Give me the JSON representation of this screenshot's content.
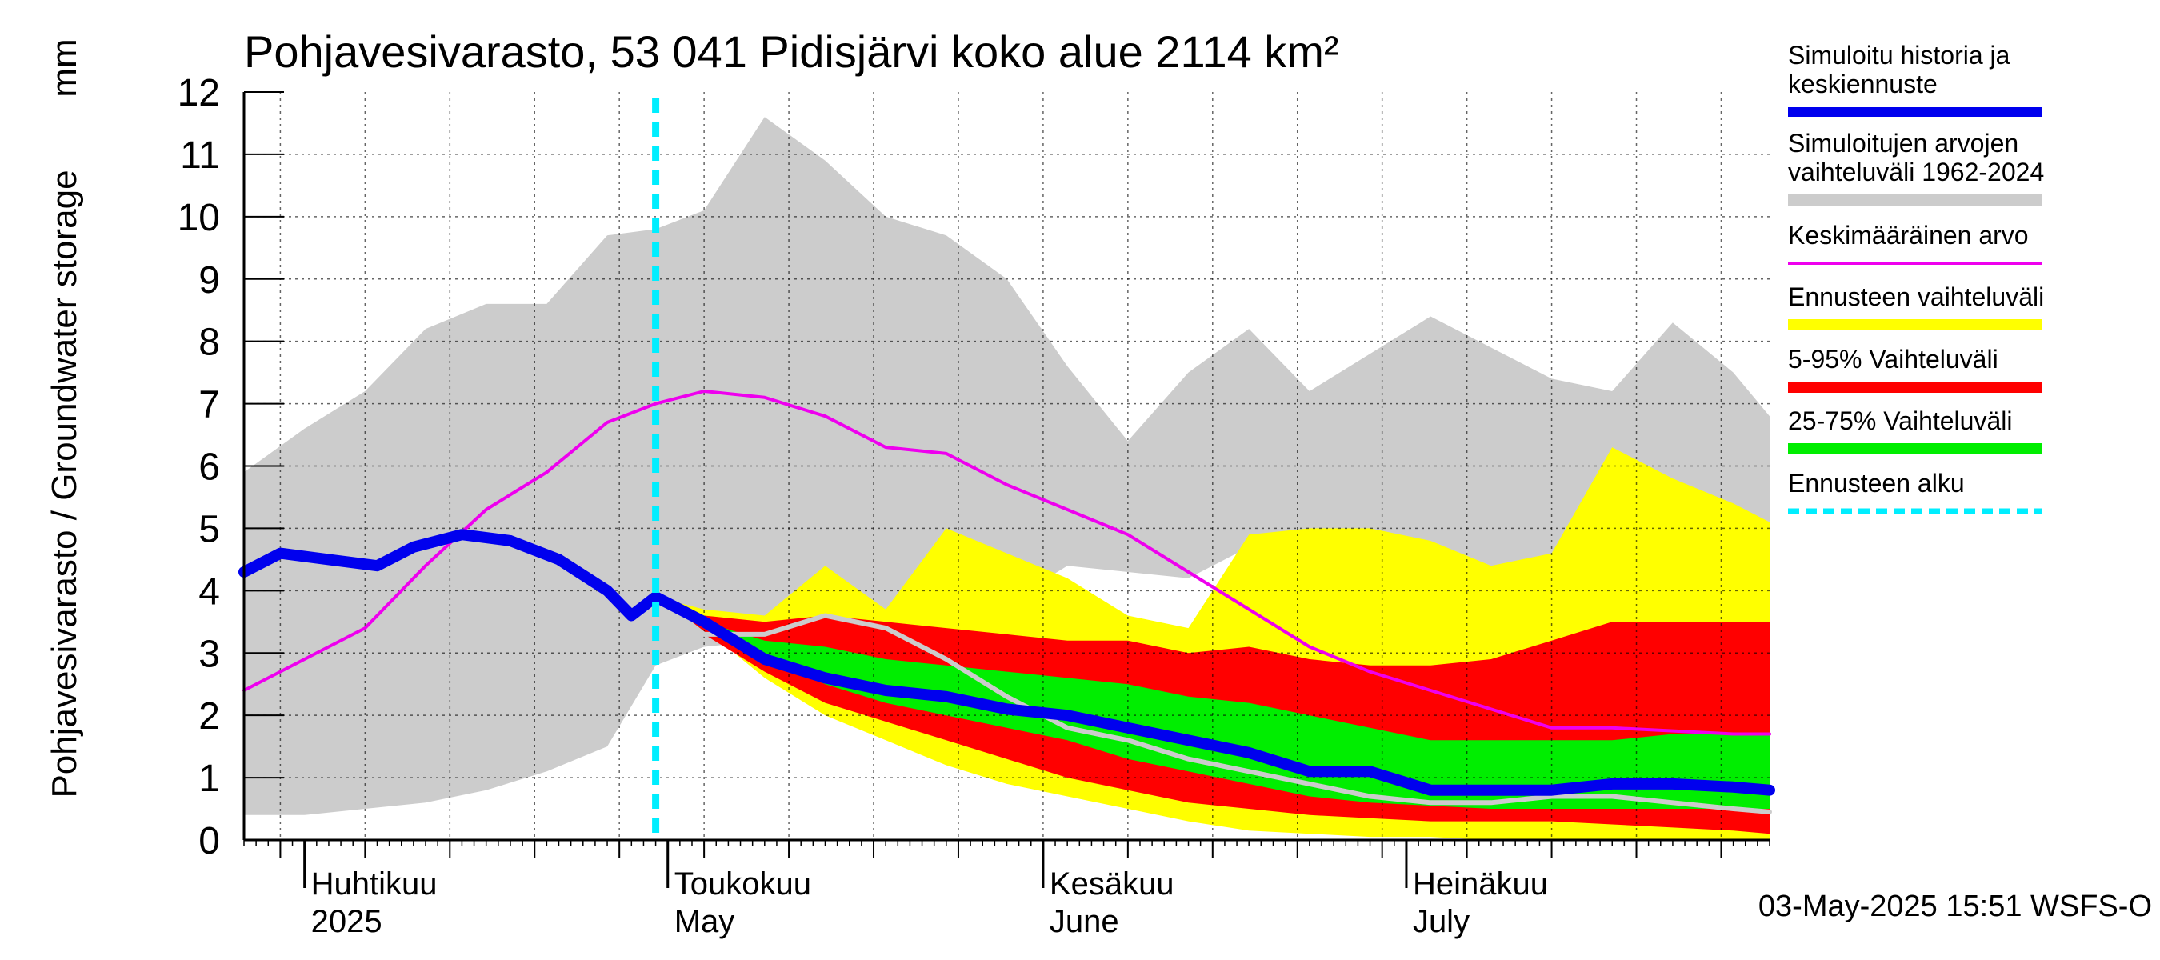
{
  "chart_data": {
    "type": "area",
    "title": "Pohjavesivarasto, 53 041 Pidisjärvi koko alue 2114 km²",
    "ylabel": "Pohjavesivarasto / Groundwater storage",
    "yunit": "mm",
    "ylim": [
      0,
      12
    ],
    "yticks": [
      0,
      1,
      2,
      3,
      4,
      5,
      6,
      7,
      8,
      9,
      10,
      11,
      12
    ],
    "xlim": [
      "2025-03-27",
      "2025-07-31"
    ],
    "x_month_labels": [
      {
        "date": "2025-04-01",
        "fi": "Huhtikuu",
        "en": "2025"
      },
      {
        "date": "2025-05-01",
        "fi": "Toukokuu",
        "en": "May"
      },
      {
        "date": "2025-06-01",
        "fi": "Kesäkuu",
        "en": "June"
      },
      {
        "date": "2025-07-01",
        "fi": "Heinäkuu",
        "en": "July"
      }
    ],
    "forecast_start": "2025-04-30",
    "footer": "03-May-2025 15:51 WSFS-O",
    "legend": [
      {
        "label": "Simuloitu historia ja keskiennuste",
        "color": "#0000ee",
        "style": "thick"
      },
      {
        "label": "Simuloitujen arvojen vaihteluväli 1962-2024",
        "color": "#cccccc",
        "style": "band"
      },
      {
        "label": "Keskimääräinen arvo",
        "color": "#ee00ee",
        "style": "line"
      },
      {
        "label": "Ennusteen vaihteluväli",
        "color": "#ffff00",
        "style": "band"
      },
      {
        "label": "5-95% Vaihteluväli",
        "color": "#ff0000",
        "style": "band"
      },
      {
        "label": "25-75% Vaihteluväli",
        "color": "#00ee00",
        "style": "band"
      },
      {
        "label": "Ennusteen alku",
        "color": "#00eeff",
        "style": "dashed"
      }
    ],
    "legend_placement": "right",
    "grid": true,
    "series": [
      {
        "name": "Simuloitujen arvojen vaihteluväli 1962-2024",
        "kind": "band",
        "color": "#cccccc",
        "x": [
          "2025-03-27",
          "2025-04-01",
          "2025-04-06",
          "2025-04-11",
          "2025-04-16",
          "2025-04-21",
          "2025-04-26",
          "2025-04-30",
          "2025-05-04",
          "2025-05-09",
          "2025-05-14",
          "2025-05-19",
          "2025-05-24",
          "2025-05-29",
          "2025-06-03",
          "2025-06-08",
          "2025-06-13",
          "2025-06-18",
          "2025-06-23",
          "2025-06-28",
          "2025-07-03",
          "2025-07-08",
          "2025-07-13",
          "2025-07-18",
          "2025-07-23",
          "2025-07-28",
          "2025-07-31"
        ],
        "upper": [
          5.9,
          6.6,
          7.2,
          8.2,
          8.6,
          8.6,
          9.7,
          9.8,
          10.1,
          11.6,
          10.9,
          10.0,
          9.7,
          9.0,
          7.6,
          6.4,
          7.5,
          8.2,
          7.2,
          7.8,
          8.4,
          7.9,
          7.4,
          7.2,
          8.3,
          7.5,
          6.8
        ],
        "lower": [
          0.4,
          0.4,
          0.5,
          0.6,
          0.8,
          1.1,
          1.5,
          2.8,
          3.1,
          3.2,
          3.3,
          3.4,
          3.6,
          3.8,
          4.4,
          4.3,
          4.2,
          4.7,
          4.9,
          4.4,
          4.4,
          4.2,
          4.6,
          4.9,
          5.2,
          5.3,
          5.1
        ]
      },
      {
        "name": "Ennusteen vaihteluväli",
        "kind": "band",
        "color": "#ffff00",
        "x": [
          "2025-04-30",
          "2025-05-04",
          "2025-05-09",
          "2025-05-14",
          "2025-05-19",
          "2025-05-24",
          "2025-05-29",
          "2025-06-03",
          "2025-06-08",
          "2025-06-13",
          "2025-06-18",
          "2025-06-23",
          "2025-06-28",
          "2025-07-03",
          "2025-07-08",
          "2025-07-13",
          "2025-07-18",
          "2025-07-23",
          "2025-07-28",
          "2025-07-31"
        ],
        "upper": [
          3.9,
          3.7,
          3.6,
          4.4,
          3.7,
          5.0,
          4.6,
          4.2,
          3.6,
          3.4,
          4.9,
          5.0,
          5.0,
          4.8,
          4.4,
          4.6,
          6.3,
          5.8,
          5.4,
          5.1
        ],
        "lower": [
          3.9,
          3.4,
          2.6,
          2.0,
          1.6,
          1.2,
          0.9,
          0.7,
          0.5,
          0.3,
          0.15,
          0.1,
          0.05,
          0.05,
          0.0,
          0.0,
          0.0,
          0.0,
          0.0,
          0.0
        ]
      },
      {
        "name": "5-95% Vaihteluväli",
        "kind": "band",
        "color": "#ff0000",
        "x": [
          "2025-04-30",
          "2025-05-04",
          "2025-05-09",
          "2025-05-14",
          "2025-05-19",
          "2025-05-24",
          "2025-05-29",
          "2025-06-03",
          "2025-06-08",
          "2025-06-13",
          "2025-06-18",
          "2025-06-23",
          "2025-06-28",
          "2025-07-03",
          "2025-07-08",
          "2025-07-13",
          "2025-07-18",
          "2025-07-23",
          "2025-07-28",
          "2025-07-31"
        ],
        "upper": [
          3.9,
          3.6,
          3.5,
          3.6,
          3.5,
          3.4,
          3.3,
          3.2,
          3.2,
          3.0,
          3.1,
          2.9,
          2.8,
          2.8,
          2.9,
          3.2,
          3.5,
          3.5,
          3.5,
          3.5
        ],
        "lower": [
          3.9,
          3.3,
          2.7,
          2.2,
          1.9,
          1.6,
          1.3,
          1.0,
          0.8,
          0.6,
          0.5,
          0.4,
          0.35,
          0.3,
          0.3,
          0.3,
          0.25,
          0.2,
          0.15,
          0.1
        ]
      },
      {
        "name": "25-75% Vaihteluväli",
        "kind": "band",
        "color": "#00ee00",
        "x": [
          "2025-04-30",
          "2025-05-04",
          "2025-05-09",
          "2025-05-14",
          "2025-05-19",
          "2025-05-24",
          "2025-05-29",
          "2025-06-03",
          "2025-06-08",
          "2025-06-13",
          "2025-06-18",
          "2025-06-23",
          "2025-06-28",
          "2025-07-03",
          "2025-07-08",
          "2025-07-13",
          "2025-07-18",
          "2025-07-23",
          "2025-07-28",
          "2025-07-31"
        ],
        "upper": [
          3.9,
          3.5,
          3.2,
          3.1,
          2.9,
          2.8,
          2.7,
          2.6,
          2.5,
          2.3,
          2.2,
          2.0,
          1.8,
          1.6,
          1.6,
          1.6,
          1.6,
          1.7,
          1.7,
          1.7
        ],
        "lower": [
          3.9,
          3.4,
          2.9,
          2.5,
          2.2,
          2.0,
          1.8,
          1.6,
          1.3,
          1.1,
          0.9,
          0.7,
          0.6,
          0.55,
          0.5,
          0.5,
          0.5,
          0.5,
          0.5,
          0.5
        ]
      },
      {
        "name": "Keskimääräinen arvo",
        "kind": "line",
        "color": "#ee00ee",
        "x": [
          "2025-03-27",
          "2025-04-01",
          "2025-04-06",
          "2025-04-11",
          "2025-04-16",
          "2025-04-21",
          "2025-04-26",
          "2025-04-30",
          "2025-05-04",
          "2025-05-09",
          "2025-05-14",
          "2025-05-19",
          "2025-05-24",
          "2025-05-29",
          "2025-06-03",
          "2025-06-08",
          "2025-06-13",
          "2025-06-18",
          "2025-06-23",
          "2025-06-28",
          "2025-07-03",
          "2025-07-08",
          "2025-07-13",
          "2025-07-18",
          "2025-07-23",
          "2025-07-28",
          "2025-07-31"
        ],
        "y": [
          2.4,
          2.9,
          3.4,
          4.4,
          5.3,
          5.9,
          6.7,
          7.0,
          7.2,
          7.1,
          6.8,
          6.3,
          6.2,
          5.7,
          5.3,
          4.9,
          4.3,
          3.7,
          3.1,
          2.7,
          2.4,
          2.1,
          1.8,
          1.8,
          1.75,
          1.7,
          1.7
        ]
      },
      {
        "name": "Keskiennuste (harmaa)",
        "kind": "line",
        "color": "#cccccc",
        "x": [
          "2025-04-30",
          "2025-05-04",
          "2025-05-09",
          "2025-05-14",
          "2025-05-19",
          "2025-05-24",
          "2025-05-29",
          "2025-06-03",
          "2025-06-08",
          "2025-06-13",
          "2025-06-18",
          "2025-06-23",
          "2025-06-28",
          "2025-07-03",
          "2025-07-08",
          "2025-07-13",
          "2025-07-18",
          "2025-07-23",
          "2025-07-28",
          "2025-07-31"
        ],
        "y": [
          3.9,
          3.3,
          3.3,
          3.6,
          3.4,
          2.9,
          2.3,
          1.8,
          1.6,
          1.3,
          1.1,
          0.9,
          0.7,
          0.6,
          0.6,
          0.7,
          0.7,
          0.6,
          0.5,
          0.45
        ]
      },
      {
        "name": "Simuloitu historia ja keskiennuste",
        "kind": "line",
        "color": "#0000ee",
        "x": [
          "2025-03-27",
          "2025-03-30",
          "2025-04-03",
          "2025-04-07",
          "2025-04-10",
          "2025-04-14",
          "2025-04-18",
          "2025-04-22",
          "2025-04-26",
          "2025-04-28",
          "2025-04-30",
          "2025-05-04",
          "2025-05-09",
          "2025-05-14",
          "2025-05-19",
          "2025-05-24",
          "2025-05-29",
          "2025-06-03",
          "2025-06-08",
          "2025-06-13",
          "2025-06-18",
          "2025-06-23",
          "2025-06-28",
          "2025-07-03",
          "2025-07-08",
          "2025-07-13",
          "2025-07-18",
          "2025-07-23",
          "2025-07-28",
          "2025-07-31"
        ],
        "y": [
          4.3,
          4.6,
          4.5,
          4.4,
          4.7,
          4.9,
          4.8,
          4.5,
          4.0,
          3.6,
          3.9,
          3.5,
          2.9,
          2.6,
          2.4,
          2.3,
          2.1,
          2.0,
          1.8,
          1.6,
          1.4,
          1.1,
          1.1,
          0.8,
          0.8,
          0.8,
          0.9,
          0.9,
          0.85,
          0.8
        ]
      }
    ]
  }
}
